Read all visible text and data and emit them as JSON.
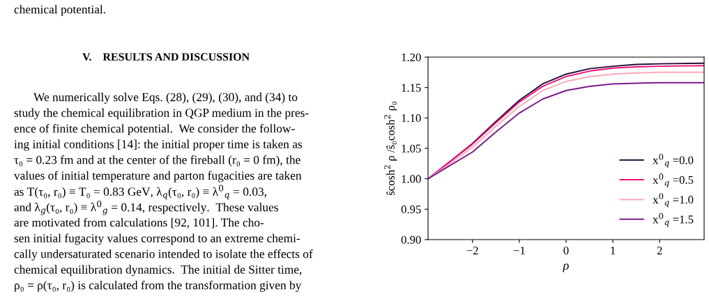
{
  "chart_data": {
    "type": "line",
    "xlabel": "ρ",
    "ylabel": "ŝcosh$^{2}$ ρ /ŝ₀cosh$^{2}$ ρ₀",
    "x": [
      -2.95,
      -2.5,
      -2,
      -1.5,
      -1,
      -0.5,
      0,
      0.5,
      1,
      1.5,
      2,
      2.95
    ],
    "series": [
      {
        "name": "x$^{0}$$_{q}$ =0.0",
        "color": "#240a35",
        "values": [
          1.0,
          1.027,
          1.058,
          1.094,
          1.129,
          1.156,
          1.172,
          1.181,
          1.185,
          1.188,
          1.189,
          1.19
        ]
      },
      {
        "name": "x$^{0}$$_{q}$ =0.5",
        "color": "#ea1479",
        "values": [
          1.0,
          1.027,
          1.057,
          1.092,
          1.126,
          1.152,
          1.168,
          1.177,
          1.182,
          1.184,
          1.185,
          1.186
        ]
      },
      {
        "name": "x$^{0}$$_{q}$ =1.0",
        "color": "#fbaab7",
        "values": [
          1.0,
          1.024,
          1.052,
          1.086,
          1.119,
          1.145,
          1.16,
          1.168,
          1.172,
          1.174,
          1.175,
          1.175
        ]
      },
      {
        "name": "x$^{0}$$_{q}$ =1.5",
        "color": "#7b1a8c",
        "values": [
          1.0,
          1.021,
          1.044,
          1.077,
          1.108,
          1.131,
          1.145,
          1.152,
          1.156,
          1.157,
          1.158,
          1.158
        ]
      }
    ],
    "xlim": [
      -2.95,
      2.95
    ],
    "ylim": [
      0.9,
      1.2
    ],
    "xticks": [
      {
        "value": -2,
        "label": "−2"
      },
      {
        "value": -1,
        "label": "−1"
      },
      0,
      1,
      2
    ],
    "yticks": [
      {
        "value": 0.9,
        "label": "0.90"
      },
      {
        "value": 0.95,
        "label": "0.95"
      },
      {
        "value": 1.0,
        "label": "1.00"
      },
      {
        "value": 1.05,
        "label": "1.05"
      },
      {
        "value": 1.1,
        "label": "1.10"
      },
      {
        "value": 1.15,
        "label": "1.15"
      },
      {
        "value": 1.2,
        "label": "1.20"
      }
    ],
    "legend": "right",
    "grid": false,
    "line_style": "solid",
    "annotations": [
      "chemical potential.",
      "V.    RESULTS AND DISCUSSION",
      "We numerically solve Eqs. (28), (29), (30), and (34) to",
      "study the chemical equilibration in QGP medium in the pres-",
      "ence of finite chemical potential.  We consider the follow-",
      "ing initial conditions [14]: the initial proper time is taken as",
      "τ₀ = 0.23 fm and at the center of the fireball (r₀ = 0 fm), the",
      "values of initial temperature and parton fugacities are taken",
      "as T(τ₀, r₀) ≡ T₀ = 0.83 GeV, λ$_{q}$(τ₀, r₀) ≡ λ$^{0}$$_{q}$ = 0.03,",
      "and λ$_{g}$(τ₀, r₀) ≡ λ$^{0}$$_{g}$ = 0.14, respectively.  These values",
      "are motivated from calculations [92, 101]. The cho-",
      "sen initial fugacity values correspond to an extreme chemi-",
      "cally undersaturated scenario intended to isolate the effects of",
      "chemical equilibration dynamics.  The initial de Sitter time,",
      "ρ₀ = ρ(τ₀, r₀) is calculated from the transformation given by"
    ]
  }
}
